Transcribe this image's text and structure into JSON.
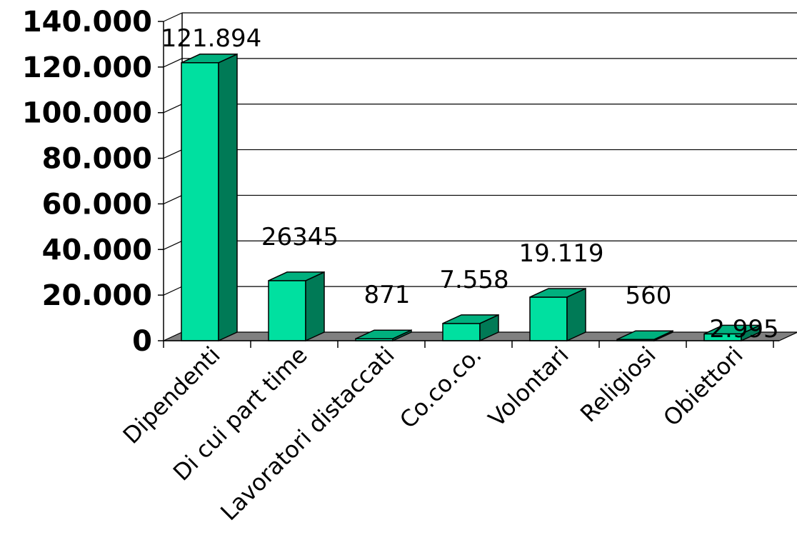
{
  "chart_data": {
    "type": "bar",
    "title": "",
    "xlabel": "",
    "ylabel": "",
    "categories": [
      "Dipendenti",
      "Di cui part time",
      "Lavoratori distaccati",
      "Co.co.co.",
      "Volontari",
      "Religiosi",
      "Obiettori"
    ],
    "values": [
      121894,
      26345,
      871,
      7558,
      19119,
      560,
      2995
    ],
    "data_labels": [
      "121.894",
      "26345",
      "871",
      "7.558",
      "19.119",
      "560",
      "2.995"
    ],
    "yticks": [
      0,
      20000,
      40000,
      60000,
      80000,
      100000,
      120000,
      140000
    ],
    "ytick_labels": [
      "0",
      "20.000",
      "40.000",
      "60.000",
      "80.000",
      "100.000",
      "120.000",
      "140.000"
    ],
    "ylim": [
      0,
      140000
    ],
    "grid": true,
    "legend": "none",
    "colors": {
      "bar_front": "#00e0a0",
      "bar_side": "#007a56",
      "bar_top": "#00b07e",
      "floor": "#808080",
      "grid": "#000000"
    }
  }
}
